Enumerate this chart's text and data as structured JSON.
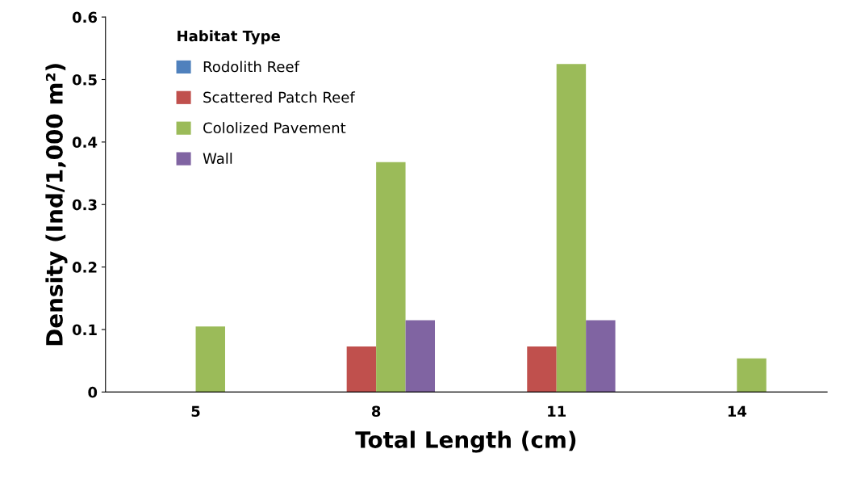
{
  "chart_data": {
    "type": "bar",
    "xlabel": "Total Length (cm)",
    "ylabel": "Density (Ind/1,000 m²)",
    "legend_title": "Habitat Type",
    "categories": [
      "5",
      "8",
      "11",
      "14"
    ],
    "series": [
      {
        "name": "Rodolith Reef",
        "color": "#4f81bd",
        "values": [
          0,
          0,
          0,
          0
        ]
      },
      {
        "name": "Scattered Patch Reef",
        "color": "#c0504d",
        "values": [
          0,
          0.073,
          0.073,
          0
        ]
      },
      {
        "name": "Cololized Pavement",
        "color": "#9bbb59",
        "values": [
          0.105,
          0.368,
          0.525,
          0.054
        ]
      },
      {
        "name": "Wall",
        "color": "#8064a2",
        "values": [
          0,
          0.115,
          0.115,
          0
        ]
      }
    ],
    "ylim": [
      0,
      0.6
    ],
    "yticks": [
      {
        "value": 0,
        "label": "0"
      },
      0.1,
      0.2,
      0.3,
      0.4,
      0.5,
      0.6
    ],
    "grid": false,
    "legend": "top left"
  }
}
